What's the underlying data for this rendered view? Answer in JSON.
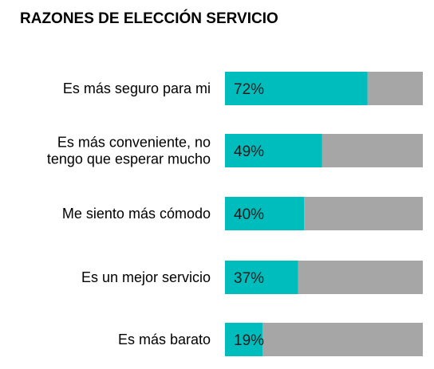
{
  "colors": {
    "value_bar": "#00BDBD",
    "remainder_bar": "#A6A6A6",
    "text": "#000000"
  },
  "chart_data": {
    "type": "bar",
    "orientation": "horizontal",
    "stacked_to_100": true,
    "title": "RAZONES DE ELECCIÓN SERVICIO",
    "categories": [
      [
        "Es más seguro para mi"
      ],
      [
        "Es más conveniente, no",
        "tengo que esperar mucho"
      ],
      [
        "Me siento más cómodo"
      ],
      [
        "Es un mejor servicio"
      ],
      [
        "Es más barato"
      ]
    ],
    "values": [
      72,
      49,
      40,
      37,
      19
    ],
    "value_labels": [
      "72%",
      "49%",
      "40%",
      "37%",
      "19%"
    ],
    "xlim": [
      0,
      100
    ],
    "grid": false,
    "legend": "none"
  }
}
